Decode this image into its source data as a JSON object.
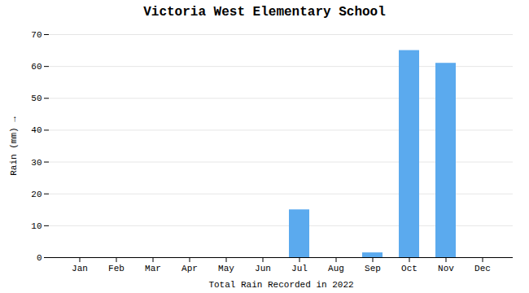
{
  "chart_data": {
    "type": "bar",
    "title": "Victoria West Elementary School",
    "xlabel": "Total Rain Recorded in 2022",
    "ylabel": "Rain (mm)",
    "categories": [
      "Jan",
      "Feb",
      "Mar",
      "Apr",
      "May",
      "Jun",
      "Jul",
      "Aug",
      "Sep",
      "Oct",
      "Nov",
      "Dec"
    ],
    "values": [
      0,
      0,
      0,
      0,
      0,
      0,
      15,
      0,
      1.5,
      65,
      61,
      0
    ],
    "color": "#5BAAEE",
    "ylim": [
      0,
      70
    ],
    "yticks": [
      0,
      10,
      20,
      30,
      40,
      50,
      60,
      70
    ],
    "grid": true
  }
}
